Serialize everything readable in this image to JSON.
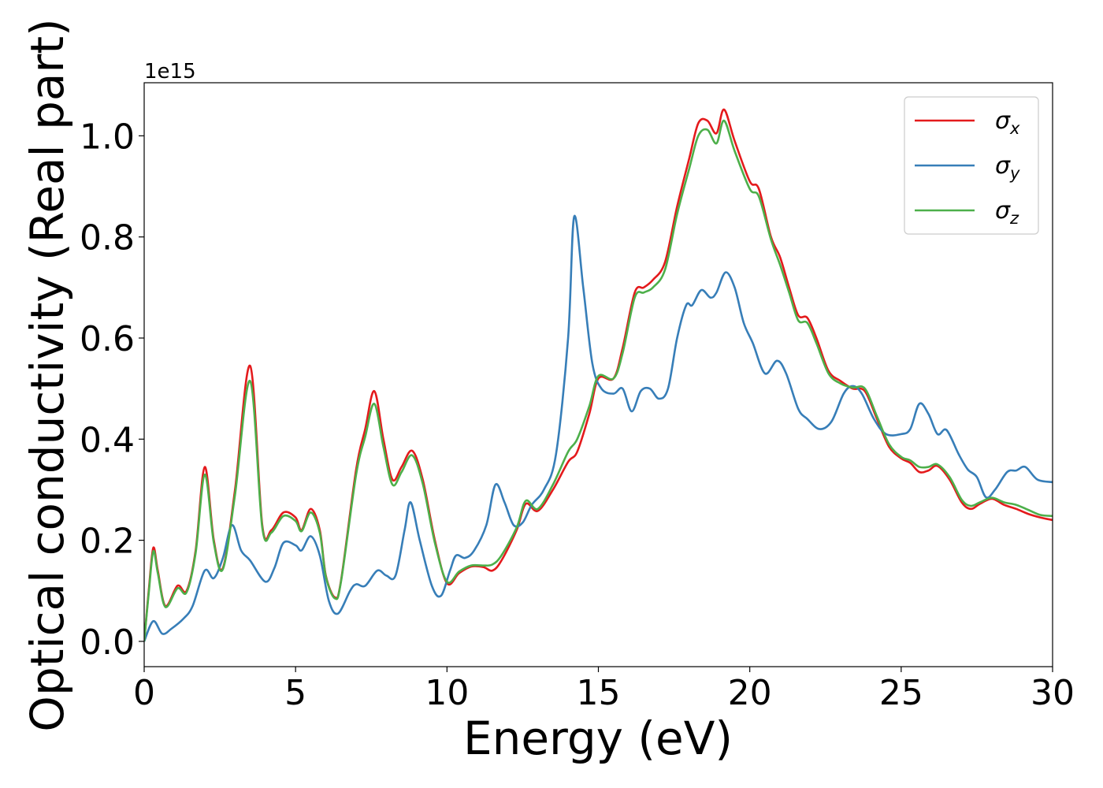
{
  "chart_data": {
    "type": "line",
    "xlabel": "Energy (eV)",
    "ylabel": "Optical conductivity (Real part)",
    "y_offset_label": "1e15",
    "xlim": [
      0,
      30
    ],
    "ylim": [
      -0.05,
      1.105
    ],
    "x_ticks": [
      0,
      5,
      10,
      15,
      20,
      25,
      30
    ],
    "x_tick_labels": [
      "0",
      "5",
      "10",
      "15",
      "20",
      "25",
      "30"
    ],
    "y_ticks": [
      0.0,
      0.2,
      0.4,
      0.6,
      0.8,
      1.0
    ],
    "y_tick_labels": [
      "0.0",
      "0.2",
      "0.4",
      "0.6",
      "0.8",
      "1.0"
    ],
    "grid": false,
    "legend_position": "top-right",
    "series": [
      {
        "name": "σ",
        "subscript": "x",
        "color": "#e41a1c",
        "points": [
          [
            0,
            0
          ],
          [
            0.15,
            0.1
          ],
          [
            0.3,
            0.185
          ],
          [
            0.45,
            0.14
          ],
          [
            0.7,
            0.07
          ],
          [
            1.1,
            0.11
          ],
          [
            1.4,
            0.1
          ],
          [
            1.7,
            0.18
          ],
          [
            2.0,
            0.345
          ],
          [
            2.3,
            0.2
          ],
          [
            2.6,
            0.145
          ],
          [
            3.0,
            0.3
          ],
          [
            3.5,
            0.545
          ],
          [
            3.9,
            0.23
          ],
          [
            4.2,
            0.22
          ],
          [
            4.6,
            0.255
          ],
          [
            5.0,
            0.245
          ],
          [
            5.2,
            0.22
          ],
          [
            5.5,
            0.262
          ],
          [
            5.8,
            0.22
          ],
          [
            6.0,
            0.13
          ],
          [
            6.3,
            0.087
          ],
          [
            6.5,
            0.12
          ],
          [
            7.0,
            0.34
          ],
          [
            7.3,
            0.42
          ],
          [
            7.6,
            0.495
          ],
          [
            7.9,
            0.4
          ],
          [
            8.2,
            0.32
          ],
          [
            8.5,
            0.345
          ],
          [
            8.85,
            0.377
          ],
          [
            9.2,
            0.32
          ],
          [
            9.6,
            0.2
          ],
          [
            10.0,
            0.115
          ],
          [
            10.4,
            0.135
          ],
          [
            10.8,
            0.148
          ],
          [
            11.2,
            0.147
          ],
          [
            11.5,
            0.14
          ],
          [
            11.8,
            0.16
          ],
          [
            12.3,
            0.22
          ],
          [
            12.6,
            0.272
          ],
          [
            13.0,
            0.258
          ],
          [
            13.5,
            0.3
          ],
          [
            14.0,
            0.355
          ],
          [
            14.3,
            0.375
          ],
          [
            14.7,
            0.45
          ],
          [
            15.0,
            0.52
          ],
          [
            15.5,
            0.52
          ],
          [
            15.8,
            0.58
          ],
          [
            16.2,
            0.69
          ],
          [
            16.5,
            0.7
          ],
          [
            16.8,
            0.715
          ],
          [
            17.2,
            0.75
          ],
          [
            17.6,
            0.86
          ],
          [
            18.0,
            0.955
          ],
          [
            18.3,
            1.025
          ],
          [
            18.6,
            1.03
          ],
          [
            18.9,
            1.005
          ],
          [
            19.15,
            1.052
          ],
          [
            19.5,
            0.99
          ],
          [
            20.0,
            0.91
          ],
          [
            20.3,
            0.895
          ],
          [
            20.7,
            0.8
          ],
          [
            21.0,
            0.76
          ],
          [
            21.3,
            0.7
          ],
          [
            21.6,
            0.645
          ],
          [
            21.9,
            0.64
          ],
          [
            22.2,
            0.6
          ],
          [
            22.6,
            0.535
          ],
          [
            23.0,
            0.515
          ],
          [
            23.4,
            0.5
          ],
          [
            23.8,
            0.495
          ],
          [
            24.2,
            0.44
          ],
          [
            24.6,
            0.385
          ],
          [
            25.0,
            0.362
          ],
          [
            25.3,
            0.353
          ],
          [
            25.6,
            0.335
          ],
          [
            25.9,
            0.338
          ],
          [
            26.2,
            0.347
          ],
          [
            26.6,
            0.32
          ],
          [
            27.0,
            0.275
          ],
          [
            27.3,
            0.262
          ],
          [
            27.6,
            0.272
          ],
          [
            28.0,
            0.282
          ],
          [
            28.4,
            0.27
          ],
          [
            28.8,
            0.262
          ],
          [
            29.2,
            0.252
          ],
          [
            29.6,
            0.245
          ],
          [
            30.0,
            0.24
          ]
        ]
      },
      {
        "name": "σ",
        "subscript": "y",
        "color": "#377eb8",
        "points": [
          [
            0,
            0
          ],
          [
            0.3,
            0.04
          ],
          [
            0.6,
            0.015
          ],
          [
            0.9,
            0.025
          ],
          [
            1.3,
            0.045
          ],
          [
            1.6,
            0.07
          ],
          [
            2.0,
            0.14
          ],
          [
            2.3,
            0.125
          ],
          [
            2.6,
            0.165
          ],
          [
            2.9,
            0.23
          ],
          [
            3.2,
            0.18
          ],
          [
            3.5,
            0.16
          ],
          [
            4.0,
            0.118
          ],
          [
            4.3,
            0.145
          ],
          [
            4.6,
            0.195
          ],
          [
            5.0,
            0.19
          ],
          [
            5.2,
            0.18
          ],
          [
            5.5,
            0.208
          ],
          [
            5.8,
            0.17
          ],
          [
            6.1,
            0.08
          ],
          [
            6.4,
            0.055
          ],
          [
            6.8,
            0.1
          ],
          [
            7.0,
            0.113
          ],
          [
            7.3,
            0.11
          ],
          [
            7.7,
            0.14
          ],
          [
            8.0,
            0.13
          ],
          [
            8.3,
            0.13
          ],
          [
            8.6,
            0.22
          ],
          [
            8.8,
            0.275
          ],
          [
            9.1,
            0.2
          ],
          [
            9.5,
            0.11
          ],
          [
            9.8,
            0.09
          ],
          [
            10.1,
            0.14
          ],
          [
            10.3,
            0.17
          ],
          [
            10.6,
            0.165
          ],
          [
            10.9,
            0.18
          ],
          [
            11.3,
            0.23
          ],
          [
            11.6,
            0.31
          ],
          [
            11.9,
            0.275
          ],
          [
            12.2,
            0.23
          ],
          [
            12.5,
            0.235
          ],
          [
            12.8,
            0.27
          ],
          [
            13.2,
            0.3
          ],
          [
            13.6,
            0.37
          ],
          [
            14.0,
            0.6
          ],
          [
            14.2,
            0.84
          ],
          [
            14.5,
            0.7
          ],
          [
            14.8,
            0.55
          ],
          [
            15.1,
            0.5
          ],
          [
            15.5,
            0.49
          ],
          [
            15.8,
            0.5
          ],
          [
            16.1,
            0.455
          ],
          [
            16.4,
            0.495
          ],
          [
            16.7,
            0.5
          ],
          [
            17.0,
            0.48
          ],
          [
            17.3,
            0.5
          ],
          [
            17.6,
            0.6
          ],
          [
            17.9,
            0.665
          ],
          [
            18.1,
            0.665
          ],
          [
            18.4,
            0.695
          ],
          [
            18.7,
            0.68
          ],
          [
            18.9,
            0.69
          ],
          [
            19.2,
            0.73
          ],
          [
            19.5,
            0.7
          ],
          [
            19.8,
            0.63
          ],
          [
            20.1,
            0.59
          ],
          [
            20.5,
            0.53
          ],
          [
            20.9,
            0.555
          ],
          [
            21.2,
            0.53
          ],
          [
            21.6,
            0.46
          ],
          [
            21.9,
            0.44
          ],
          [
            22.3,
            0.42
          ],
          [
            22.7,
            0.435
          ],
          [
            23.1,
            0.49
          ],
          [
            23.4,
            0.505
          ],
          [
            23.7,
            0.49
          ],
          [
            24.1,
            0.44
          ],
          [
            24.5,
            0.41
          ],
          [
            25.0,
            0.41
          ],
          [
            25.3,
            0.42
          ],
          [
            25.6,
            0.47
          ],
          [
            25.9,
            0.45
          ],
          [
            26.2,
            0.41
          ],
          [
            26.5,
            0.418
          ],
          [
            26.9,
            0.37
          ],
          [
            27.2,
            0.34
          ],
          [
            27.5,
            0.325
          ],
          [
            27.8,
            0.285
          ],
          [
            28.1,
            0.3
          ],
          [
            28.5,
            0.335
          ],
          [
            28.8,
            0.338
          ],
          [
            29.1,
            0.345
          ],
          [
            29.5,
            0.32
          ],
          [
            30.0,
            0.315
          ]
        ]
      },
      {
        "name": "σ",
        "subscript": "z",
        "color": "#4daf4a",
        "points": [
          [
            0,
            0
          ],
          [
            0.15,
            0.095
          ],
          [
            0.3,
            0.178
          ],
          [
            0.45,
            0.135
          ],
          [
            0.7,
            0.068
          ],
          [
            1.1,
            0.105
          ],
          [
            1.4,
            0.097
          ],
          [
            1.7,
            0.175
          ],
          [
            2.0,
            0.33
          ],
          [
            2.3,
            0.195
          ],
          [
            2.6,
            0.143
          ],
          [
            3.0,
            0.29
          ],
          [
            3.5,
            0.515
          ],
          [
            3.9,
            0.225
          ],
          [
            4.2,
            0.215
          ],
          [
            4.6,
            0.248
          ],
          [
            5.0,
            0.238
          ],
          [
            5.2,
            0.218
          ],
          [
            5.5,
            0.255
          ],
          [
            5.8,
            0.215
          ],
          [
            6.0,
            0.128
          ],
          [
            6.3,
            0.085
          ],
          [
            6.5,
            0.118
          ],
          [
            7.0,
            0.33
          ],
          [
            7.3,
            0.405
          ],
          [
            7.6,
            0.47
          ],
          [
            7.9,
            0.385
          ],
          [
            8.2,
            0.31
          ],
          [
            8.5,
            0.335
          ],
          [
            8.85,
            0.368
          ],
          [
            9.2,
            0.312
          ],
          [
            9.6,
            0.195
          ],
          [
            10.0,
            0.118
          ],
          [
            10.4,
            0.138
          ],
          [
            10.8,
            0.15
          ],
          [
            11.2,
            0.15
          ],
          [
            11.5,
            0.152
          ],
          [
            11.8,
            0.17
          ],
          [
            12.3,
            0.225
          ],
          [
            12.6,
            0.278
          ],
          [
            13.0,
            0.262
          ],
          [
            13.5,
            0.31
          ],
          [
            14.0,
            0.375
          ],
          [
            14.3,
            0.4
          ],
          [
            14.7,
            0.465
          ],
          [
            15.0,
            0.525
          ],
          [
            15.5,
            0.52
          ],
          [
            15.8,
            0.57
          ],
          [
            16.2,
            0.68
          ],
          [
            16.5,
            0.69
          ],
          [
            16.8,
            0.7
          ],
          [
            17.2,
            0.735
          ],
          [
            17.6,
            0.845
          ],
          [
            18.0,
            0.935
          ],
          [
            18.3,
            1.0
          ],
          [
            18.6,
            1.012
          ],
          [
            18.9,
            0.985
          ],
          [
            19.15,
            1.03
          ],
          [
            19.5,
            0.97
          ],
          [
            20.0,
            0.895
          ],
          [
            20.3,
            0.88
          ],
          [
            20.7,
            0.795
          ],
          [
            21.0,
            0.745
          ],
          [
            21.3,
            0.69
          ],
          [
            21.6,
            0.635
          ],
          [
            21.9,
            0.63
          ],
          [
            22.2,
            0.59
          ],
          [
            22.6,
            0.53
          ],
          [
            23.0,
            0.51
          ],
          [
            23.4,
            0.502
          ],
          [
            23.8,
            0.5
          ],
          [
            24.2,
            0.445
          ],
          [
            24.6,
            0.39
          ],
          [
            25.0,
            0.365
          ],
          [
            25.3,
            0.358
          ],
          [
            25.6,
            0.345
          ],
          [
            25.9,
            0.345
          ],
          [
            26.2,
            0.35
          ],
          [
            26.6,
            0.325
          ],
          [
            27.0,
            0.28
          ],
          [
            27.3,
            0.268
          ],
          [
            27.6,
            0.275
          ],
          [
            28.0,
            0.284
          ],
          [
            28.4,
            0.275
          ],
          [
            28.8,
            0.27
          ],
          [
            29.2,
            0.26
          ],
          [
            29.6,
            0.25
          ],
          [
            30.0,
            0.248
          ]
        ]
      }
    ]
  }
}
